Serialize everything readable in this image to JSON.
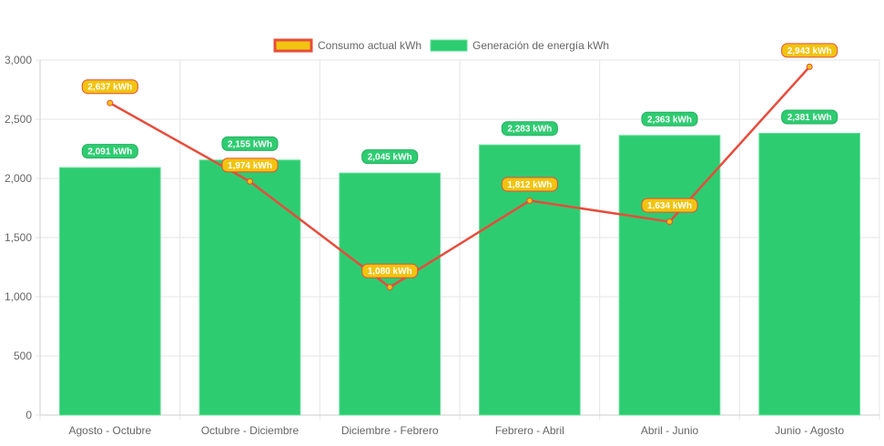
{
  "chart_data": {
    "type": "bar",
    "categories": [
      "Agosto - Octubre",
      "Octubre - Diciembre",
      "Diciembre - Febrero",
      "Febrero - Abril",
      "Abril - Junio",
      "Junio - Agosto"
    ],
    "series": [
      {
        "name": "Consumo actual kWh",
        "type": "line",
        "values": [
          2637,
          1974,
          1080,
          1812,
          1634,
          2943
        ],
        "labels": [
          "2,637 kWh",
          "1,974 kWh",
          "1,080 kWh",
          "1,812 kWh",
          "1,634 kWh",
          "2,943 kWh"
        ],
        "color": "#f1c40f",
        "border_color": "#e74c3c"
      },
      {
        "name": "Generación de energía kWh",
        "type": "bar",
        "values": [
          2091,
          2155,
          2045,
          2283,
          2363,
          2381
        ],
        "labels": [
          "2,091 kWh",
          "2,155 kWh",
          "2,045 kWh",
          "2,283 kWh",
          "2,363 kWh",
          "2,381 kWh"
        ],
        "color": "#2ecc71"
      }
    ],
    "yticks": [
      "0",
      "500",
      "1,000",
      "1,500",
      "2,000",
      "2,500",
      "3,000"
    ],
    "ylim": [
      0,
      3000
    ],
    "grid": true,
    "legend": "top"
  }
}
